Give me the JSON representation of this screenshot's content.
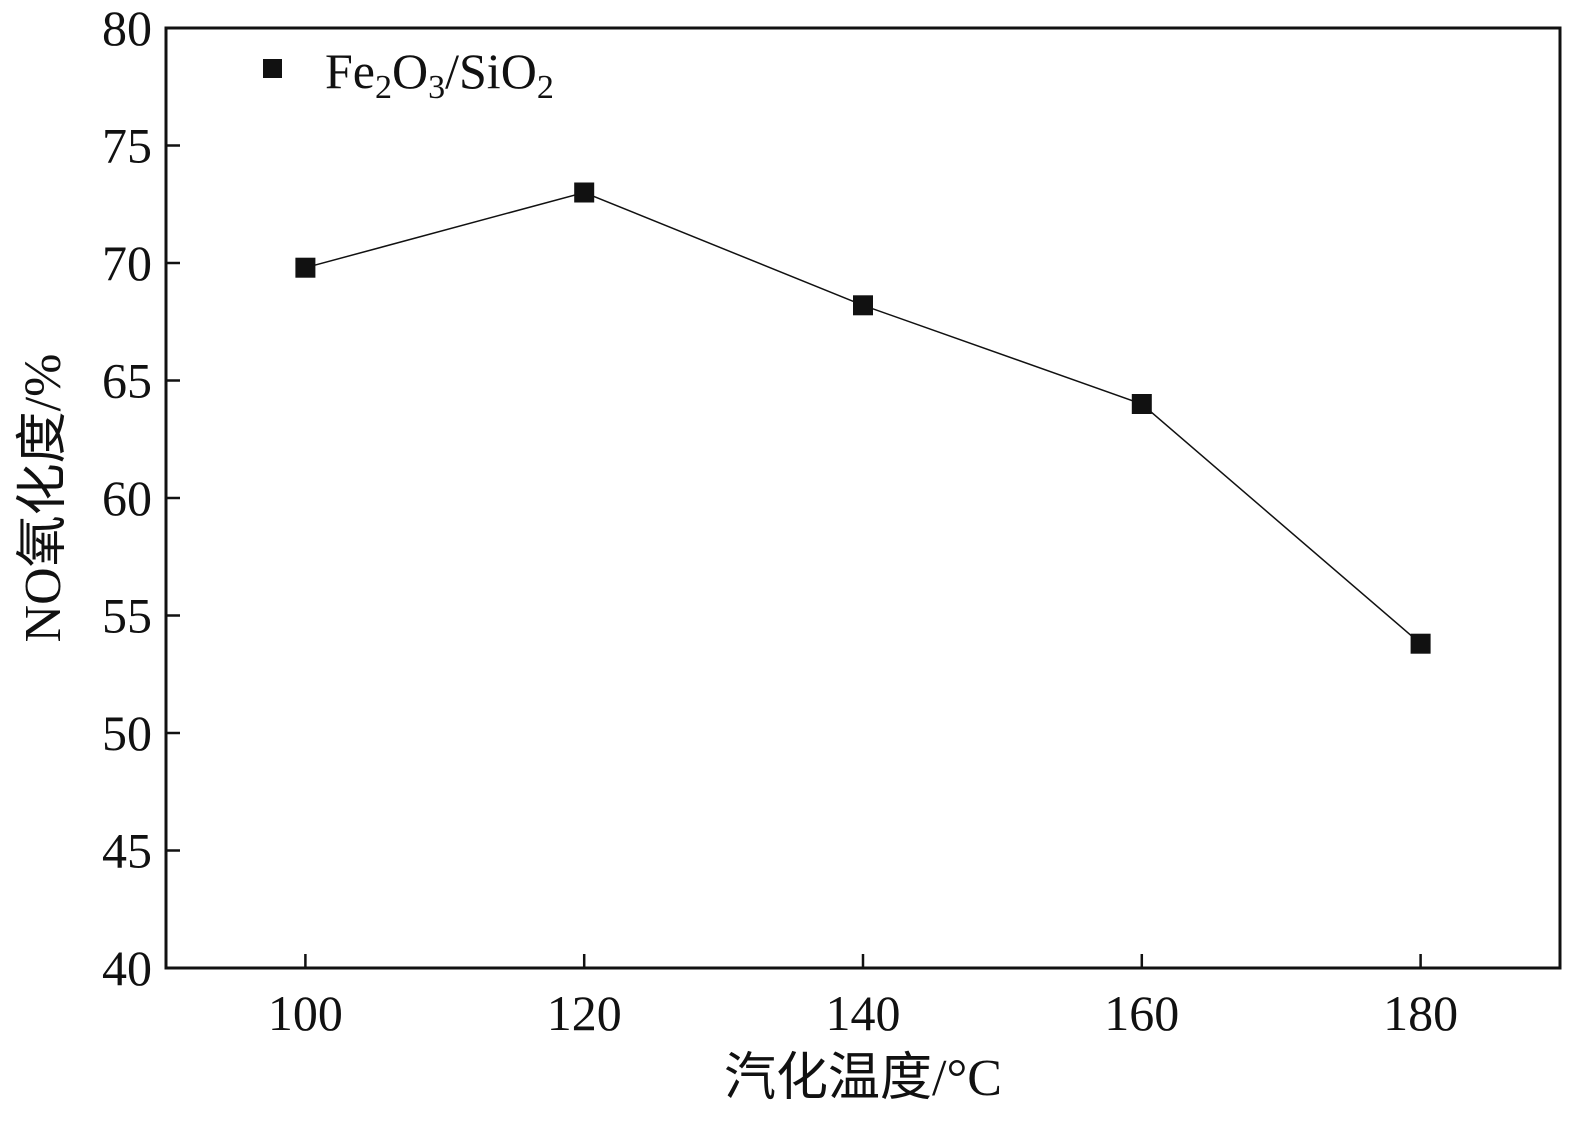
{
  "chart_data": {
    "type": "line",
    "title": "",
    "xlabel": "汽化温度/°C",
    "ylabel": "NO氧化度/%",
    "xlim": [
      90,
      190
    ],
    "ylim": [
      40,
      80
    ],
    "xticks": [
      100,
      120,
      140,
      160,
      180
    ],
    "yticks": [
      40,
      45,
      50,
      55,
      60,
      65,
      70,
      75,
      80
    ],
    "grid": false,
    "legend_position": "top-left",
    "series": [
      {
        "name": "Fe2O3/SiO2",
        "legend_parts": [
          {
            "text": "Fe",
            "sub": false
          },
          {
            "text": "2",
            "sub": true
          },
          {
            "text": "O",
            "sub": false
          },
          {
            "text": "3",
            "sub": true
          },
          {
            "text": "/SiO",
            "sub": false
          },
          {
            "text": "2",
            "sub": true
          }
        ],
        "marker": "square",
        "color": "#111111",
        "x": [
          100,
          120,
          140,
          160,
          180
        ],
        "y": [
          69.8,
          73.0,
          68.2,
          64.0,
          53.8
        ]
      }
    ]
  }
}
